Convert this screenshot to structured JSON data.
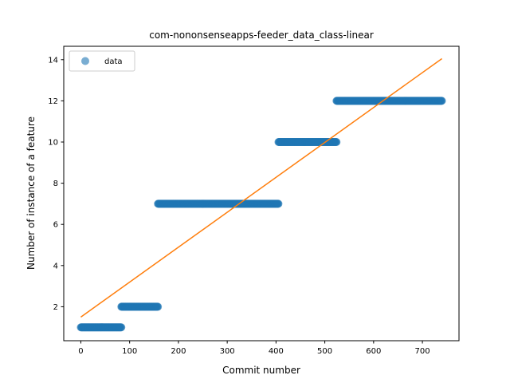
{
  "chart_data": {
    "type": "scatter",
    "title": "com-nononsenseapps-feeder_data_class-linear",
    "xlabel": "Commit number",
    "ylabel": "Number of instance of a feature",
    "xlim": [
      -35,
      775
    ],
    "ylim": [
      0.35,
      14.65
    ],
    "xticks": [
      0,
      100,
      200,
      300,
      400,
      500,
      600,
      700
    ],
    "yticks": [
      2,
      4,
      6,
      8,
      10,
      12,
      14
    ],
    "grid": false,
    "legend": {
      "placement": "top-left",
      "entries": [
        "data"
      ]
    },
    "series": [
      {
        "name": "data",
        "kind": "scatter",
        "color": "#1f77b4",
        "segments": [
          {
            "x_start": 0,
            "x_end": 83,
            "y": 1
          },
          {
            "x_start": 83,
            "x_end": 158,
            "y": 2
          },
          {
            "x_start": 158,
            "x_end": 405,
            "y": 7
          },
          {
            "x_start": 405,
            "x_end": 524,
            "y": 10
          },
          {
            "x_start": 524,
            "x_end": 740,
            "y": 12
          }
        ]
      },
      {
        "kind": "line",
        "color": "#ff7f0e",
        "points": [
          [
            0,
            1.5
          ],
          [
            740,
            14.05
          ]
        ]
      }
    ]
  }
}
